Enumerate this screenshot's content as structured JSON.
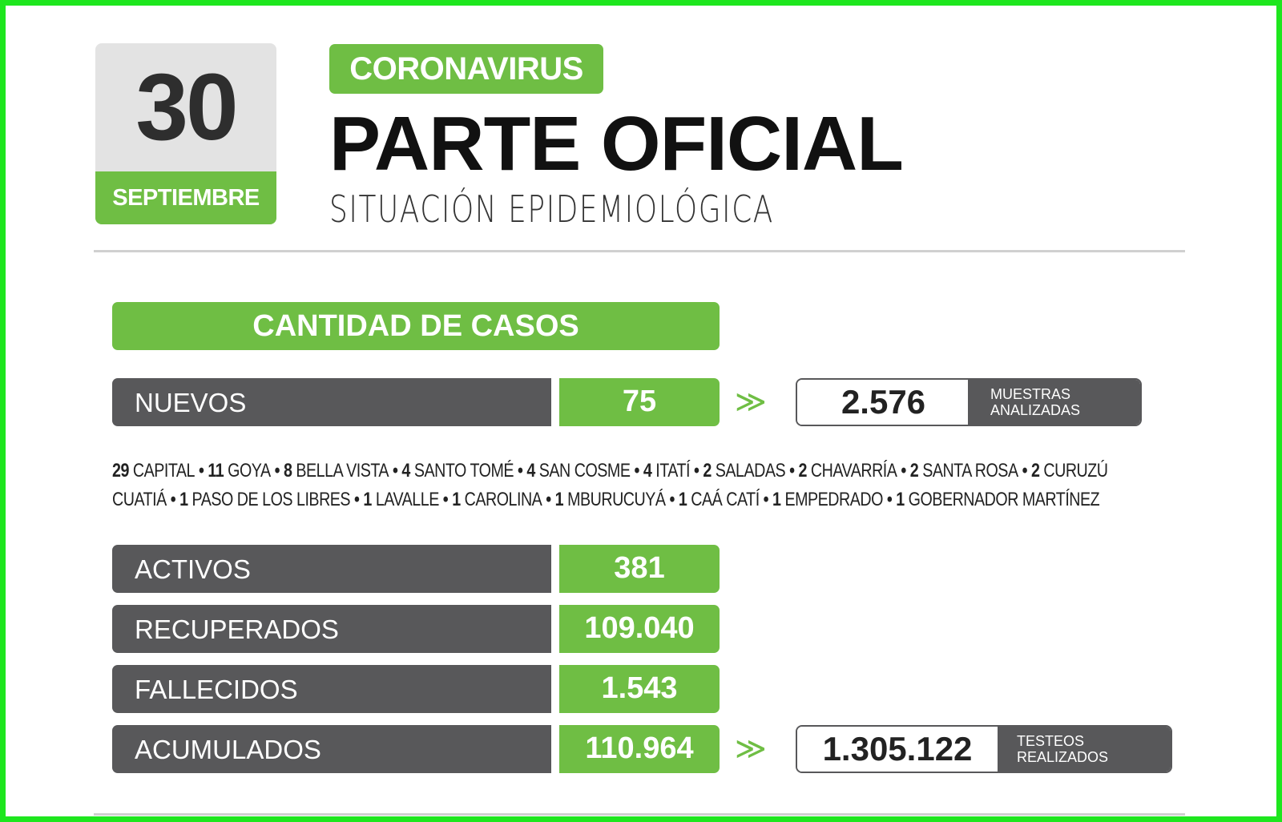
{
  "date": {
    "day": "30",
    "month": "SEPTIEMBRE"
  },
  "header": {
    "tag": "CORONAVIRUS",
    "title": "PARTE OFICIAL",
    "subtitle": "SITUACIÓN EPIDEMIOLÓGICA"
  },
  "section_title": "CANTIDAD DE CASOS",
  "arrow_glyph": "≫",
  "nuevos": {
    "label": "NUEVOS",
    "value": "75"
  },
  "muestras": {
    "value": "2.576",
    "caption_line1": "MUESTRAS",
    "caption_line2": "ANALIZADAS"
  },
  "breakdown": [
    {
      "count": "29",
      "place": "CAPITAL"
    },
    {
      "count": "11",
      "place": "GOYA"
    },
    {
      "count": "8",
      "place": "BELLA VISTA"
    },
    {
      "count": "4",
      "place": "SANTO TOMÉ"
    },
    {
      "count": "4",
      "place": "SAN COSME"
    },
    {
      "count": "4",
      "place": "ITATÍ"
    },
    {
      "count": "2",
      "place": "SALADAS"
    },
    {
      "count": "2",
      "place": "CHAVARRÍA"
    },
    {
      "count": "2",
      "place": "SANTA ROSA"
    },
    {
      "count": "2",
      "place": "CURUZÚ CUATIÁ"
    },
    {
      "count": "1",
      "place": "PASO DE LOS LIBRES"
    },
    {
      "count": "1",
      "place": "LAVALLE"
    },
    {
      "count": "1",
      "place": "CAROLINA"
    },
    {
      "count": "1",
      "place": "MBURUCUYÁ"
    },
    {
      "count": "1",
      "place": "CAÁ CATÍ"
    },
    {
      "count": "1",
      "place": "EMPEDRADO"
    },
    {
      "count": "1",
      "place": "GOBERNADOR MARTÍNEZ"
    }
  ],
  "activos": {
    "label": "ACTIVOS",
    "value": "381"
  },
  "recuperados": {
    "label": "RECUPERADOS",
    "value": "109.040"
  },
  "fallecidos": {
    "label": "FALLECIDOS",
    "value": "1.543"
  },
  "acumulados": {
    "label": "ACUMULADOS",
    "value": "110.964"
  },
  "testeos": {
    "value": "1.305.122",
    "caption_line1": "TESTEOS",
    "caption_line2": "REALIZADOS"
  },
  "colors": {
    "green": "#6fbe44",
    "dark_gray": "#58585a",
    "light_gray": "#e3e3e3",
    "frame": "#1ee61e"
  }
}
